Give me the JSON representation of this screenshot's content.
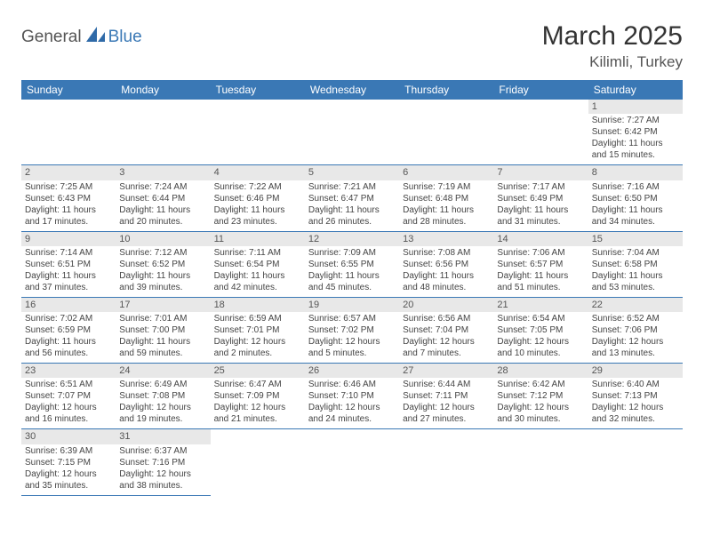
{
  "logo": {
    "part1": "General",
    "part2": "Blue",
    "shape_color": "#2f6aa8"
  },
  "title": {
    "month_year": "March 2025",
    "location": "Kilimli, Turkey"
  },
  "colors": {
    "header_bg": "#3a78b5",
    "header_fg": "#ffffff",
    "daynum_bg": "#e8e8e8",
    "rule": "#3a78b5"
  },
  "weekdays": [
    "Sunday",
    "Monday",
    "Tuesday",
    "Wednesday",
    "Thursday",
    "Friday",
    "Saturday"
  ],
  "weeks": [
    [
      null,
      null,
      null,
      null,
      null,
      null,
      {
        "n": "1",
        "sr": "7:27 AM",
        "ss": "6:42 PM",
        "dl": "11 hours and 15 minutes."
      }
    ],
    [
      {
        "n": "2",
        "sr": "7:25 AM",
        "ss": "6:43 PM",
        "dl": "11 hours and 17 minutes."
      },
      {
        "n": "3",
        "sr": "7:24 AM",
        "ss": "6:44 PM",
        "dl": "11 hours and 20 minutes."
      },
      {
        "n": "4",
        "sr": "7:22 AM",
        "ss": "6:46 PM",
        "dl": "11 hours and 23 minutes."
      },
      {
        "n": "5",
        "sr": "7:21 AM",
        "ss": "6:47 PM",
        "dl": "11 hours and 26 minutes."
      },
      {
        "n": "6",
        "sr": "7:19 AM",
        "ss": "6:48 PM",
        "dl": "11 hours and 28 minutes."
      },
      {
        "n": "7",
        "sr": "7:17 AM",
        "ss": "6:49 PM",
        "dl": "11 hours and 31 minutes."
      },
      {
        "n": "8",
        "sr": "7:16 AM",
        "ss": "6:50 PM",
        "dl": "11 hours and 34 minutes."
      }
    ],
    [
      {
        "n": "9",
        "sr": "7:14 AM",
        "ss": "6:51 PM",
        "dl": "11 hours and 37 minutes."
      },
      {
        "n": "10",
        "sr": "7:12 AM",
        "ss": "6:52 PM",
        "dl": "11 hours and 39 minutes."
      },
      {
        "n": "11",
        "sr": "7:11 AM",
        "ss": "6:54 PM",
        "dl": "11 hours and 42 minutes."
      },
      {
        "n": "12",
        "sr": "7:09 AM",
        "ss": "6:55 PM",
        "dl": "11 hours and 45 minutes."
      },
      {
        "n": "13",
        "sr": "7:08 AM",
        "ss": "6:56 PM",
        "dl": "11 hours and 48 minutes."
      },
      {
        "n": "14",
        "sr": "7:06 AM",
        "ss": "6:57 PM",
        "dl": "11 hours and 51 minutes."
      },
      {
        "n": "15",
        "sr": "7:04 AM",
        "ss": "6:58 PM",
        "dl": "11 hours and 53 minutes."
      }
    ],
    [
      {
        "n": "16",
        "sr": "7:02 AM",
        "ss": "6:59 PM",
        "dl": "11 hours and 56 minutes."
      },
      {
        "n": "17",
        "sr": "7:01 AM",
        "ss": "7:00 PM",
        "dl": "11 hours and 59 minutes."
      },
      {
        "n": "18",
        "sr": "6:59 AM",
        "ss": "7:01 PM",
        "dl": "12 hours and 2 minutes."
      },
      {
        "n": "19",
        "sr": "6:57 AM",
        "ss": "7:02 PM",
        "dl": "12 hours and 5 minutes."
      },
      {
        "n": "20",
        "sr": "6:56 AM",
        "ss": "7:04 PM",
        "dl": "12 hours and 7 minutes."
      },
      {
        "n": "21",
        "sr": "6:54 AM",
        "ss": "7:05 PM",
        "dl": "12 hours and 10 minutes."
      },
      {
        "n": "22",
        "sr": "6:52 AM",
        "ss": "7:06 PM",
        "dl": "12 hours and 13 minutes."
      }
    ],
    [
      {
        "n": "23",
        "sr": "6:51 AM",
        "ss": "7:07 PM",
        "dl": "12 hours and 16 minutes."
      },
      {
        "n": "24",
        "sr": "6:49 AM",
        "ss": "7:08 PM",
        "dl": "12 hours and 19 minutes."
      },
      {
        "n": "25",
        "sr": "6:47 AM",
        "ss": "7:09 PM",
        "dl": "12 hours and 21 minutes."
      },
      {
        "n": "26",
        "sr": "6:46 AM",
        "ss": "7:10 PM",
        "dl": "12 hours and 24 minutes."
      },
      {
        "n": "27",
        "sr": "6:44 AM",
        "ss": "7:11 PM",
        "dl": "12 hours and 27 minutes."
      },
      {
        "n": "28",
        "sr": "6:42 AM",
        "ss": "7:12 PM",
        "dl": "12 hours and 30 minutes."
      },
      {
        "n": "29",
        "sr": "6:40 AM",
        "ss": "7:13 PM",
        "dl": "12 hours and 32 minutes."
      }
    ],
    [
      {
        "n": "30",
        "sr": "6:39 AM",
        "ss": "7:15 PM",
        "dl": "12 hours and 35 minutes."
      },
      {
        "n": "31",
        "sr": "6:37 AM",
        "ss": "7:16 PM",
        "dl": "12 hours and 38 minutes."
      },
      null,
      null,
      null,
      null,
      null
    ]
  ],
  "labels": {
    "sunrise": "Sunrise: ",
    "sunset": "Sunset: ",
    "daylight": "Daylight: "
  }
}
